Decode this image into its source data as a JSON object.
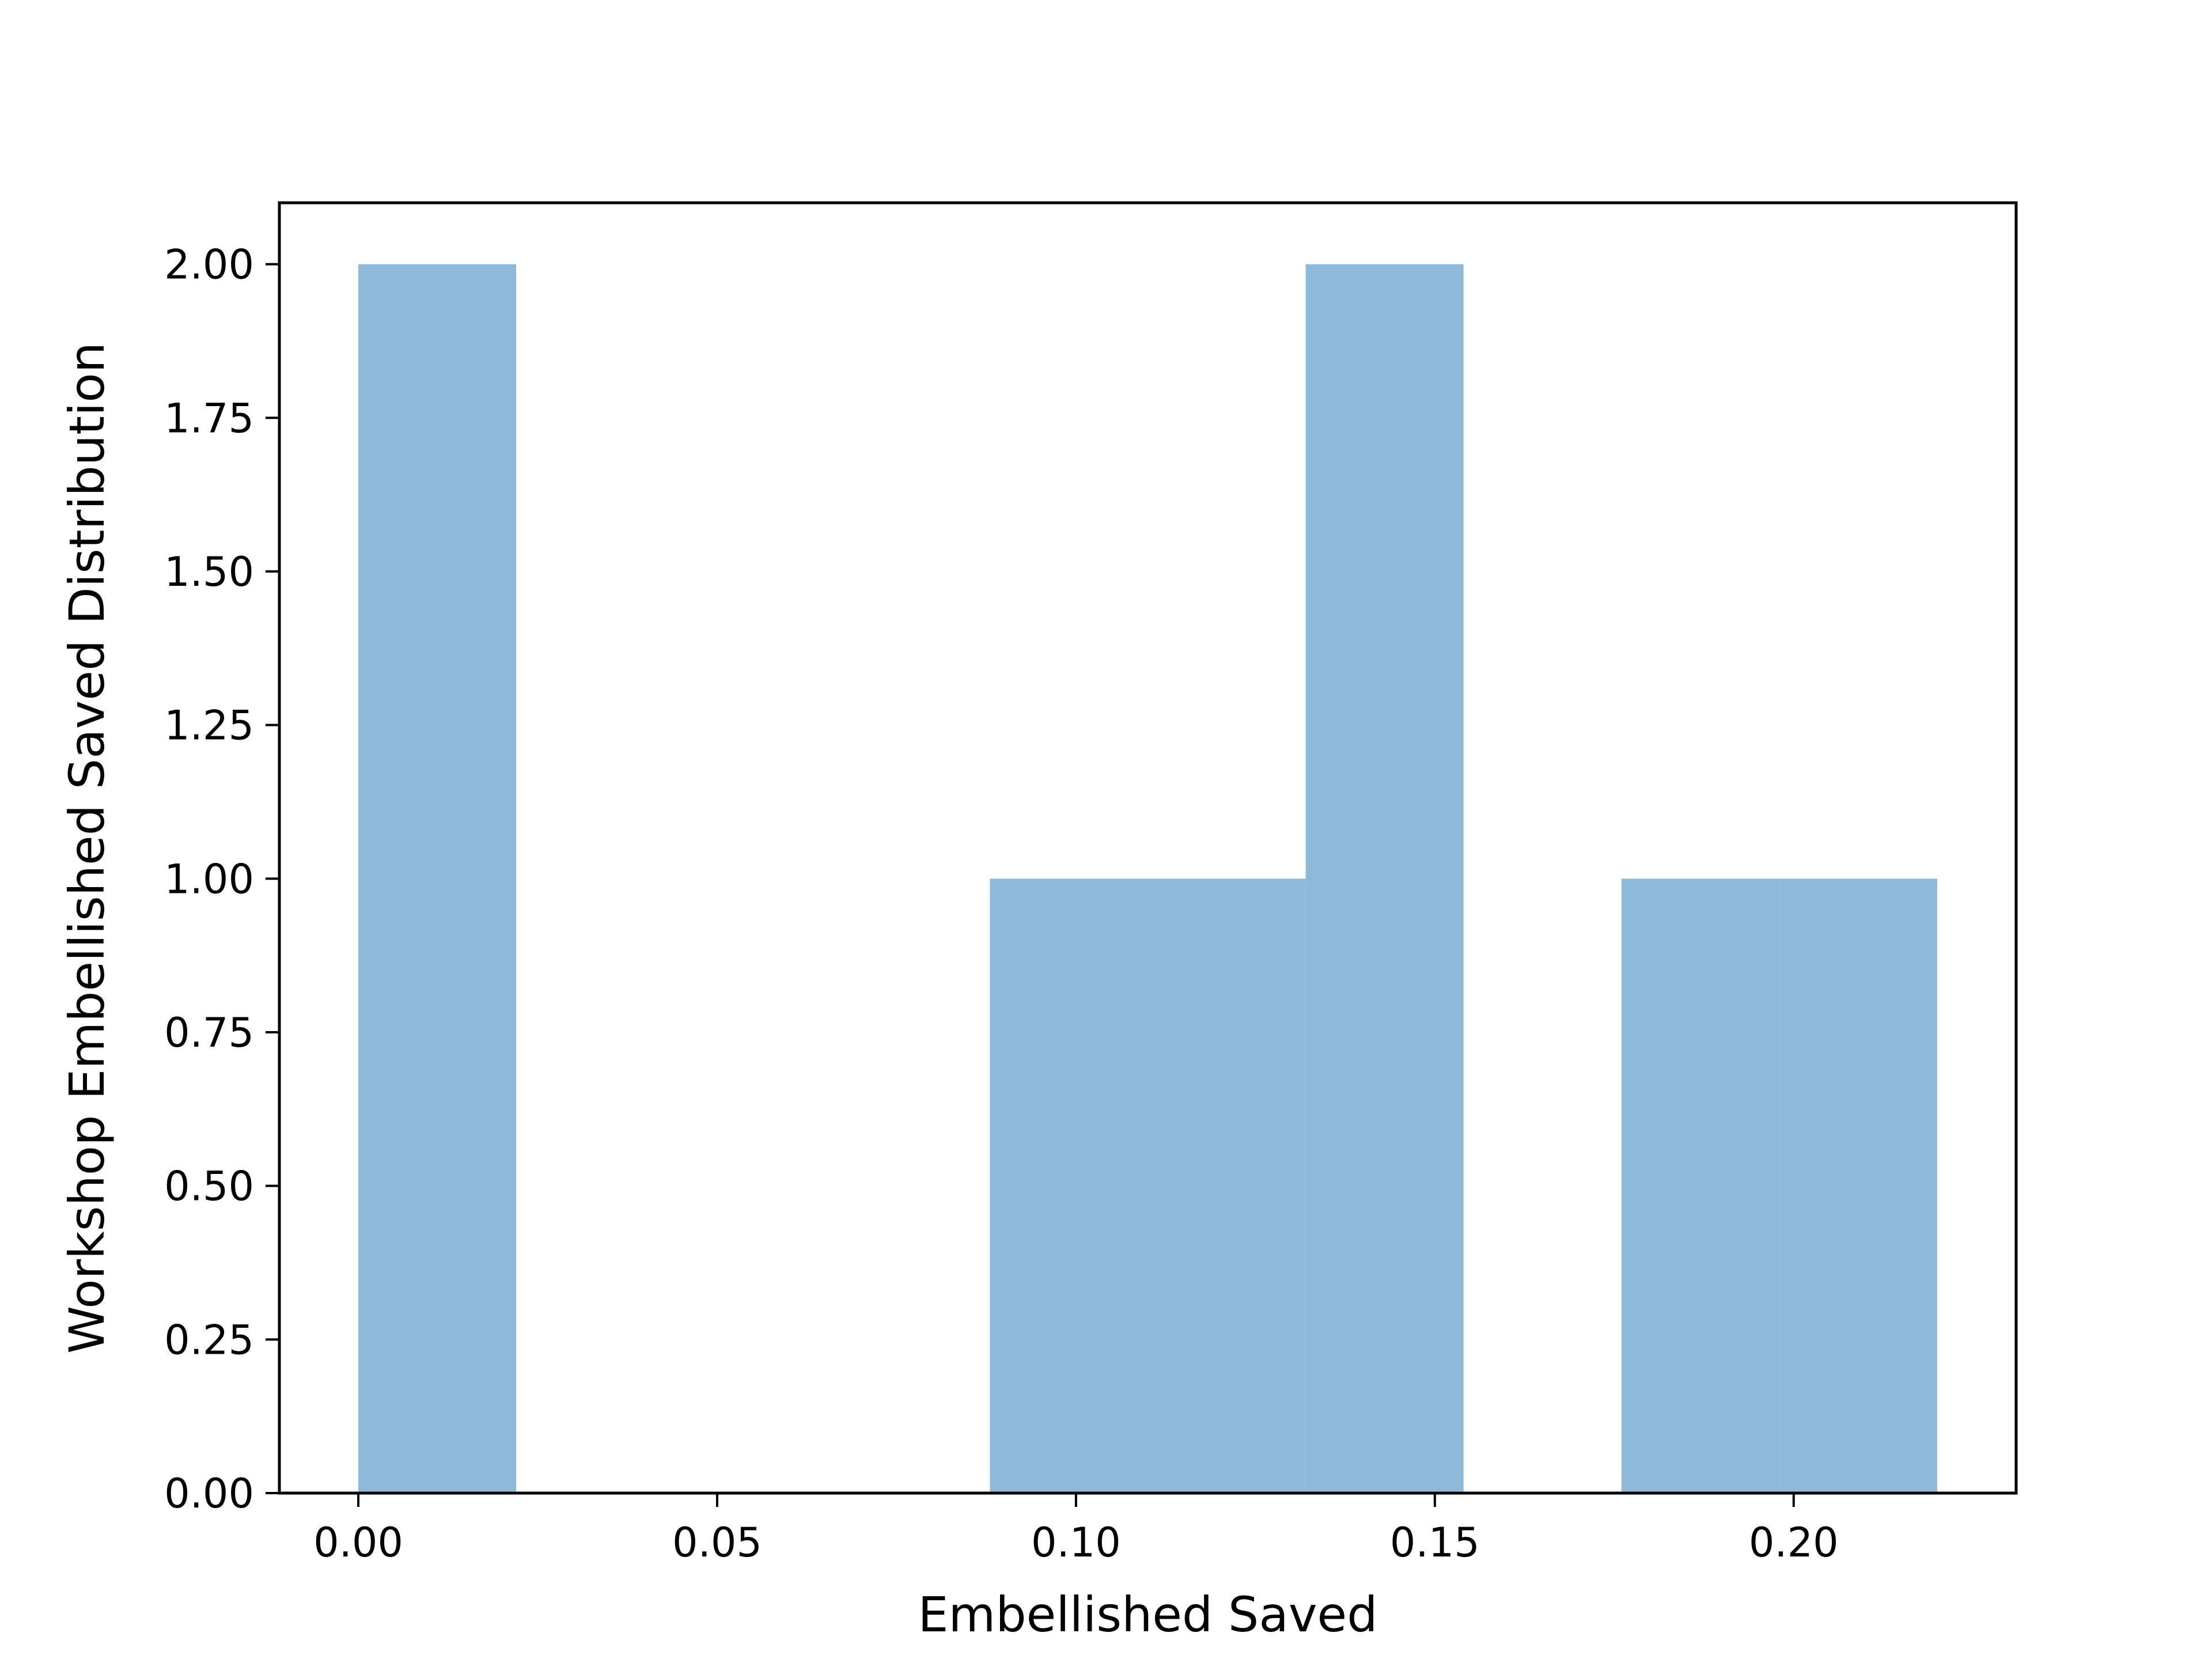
{
  "chart_data": {
    "type": "bar",
    "subtype": "histogram",
    "title": "",
    "xlabel": "Embellished Saved",
    "ylabel": "Workshop Embellished Saved Distribution",
    "bins": [
      {
        "x0": 0.0,
        "x1": 0.022,
        "count": 2
      },
      {
        "x0": 0.022,
        "x1": 0.044,
        "count": 0
      },
      {
        "x0": 0.044,
        "x1": 0.066,
        "count": 0
      },
      {
        "x0": 0.066,
        "x1": 0.088,
        "count": 0
      },
      {
        "x0": 0.088,
        "x1": 0.11,
        "count": 1
      },
      {
        "x0": 0.11,
        "x1": 0.132,
        "count": 1
      },
      {
        "x0": 0.132,
        "x1": 0.154,
        "count": 2
      },
      {
        "x0": 0.154,
        "x1": 0.176,
        "count": 0
      },
      {
        "x0": 0.176,
        "x1": 0.198,
        "count": 1
      },
      {
        "x0": 0.198,
        "x1": 0.22,
        "count": 1
      }
    ],
    "xlim": [
      -0.011,
      0.231
    ],
    "ylim": [
      0,
      2.1
    ],
    "xticks": [
      0.0,
      0.05,
      0.1,
      0.15,
      0.2
    ],
    "xtick_labels": [
      "0.00",
      "0.05",
      "0.10",
      "0.15",
      "0.20"
    ],
    "yticks": [
      0.0,
      0.25,
      0.5,
      0.75,
      1.0,
      1.25,
      1.5,
      1.75,
      2.0
    ],
    "ytick_labels": [
      "0.00",
      "0.25",
      "0.50",
      "0.75",
      "1.00",
      "1.25",
      "1.50",
      "1.75",
      "2.00"
    ],
    "grid": false,
    "bar_color": "#8fb9d8",
    "legend": "none"
  }
}
